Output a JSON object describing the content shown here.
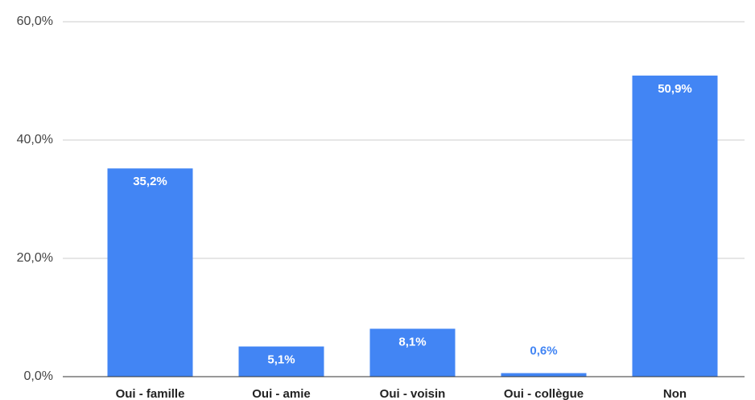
{
  "chart_data": {
    "type": "bar",
    "categories": [
      "Oui - famille",
      "Oui - amie",
      "Oui - voisin",
      "Oui - collègue",
      "Non"
    ],
    "values": [
      35.2,
      5.1,
      8.1,
      0.6,
      50.9
    ],
    "value_labels": [
      "35,2%",
      "5,1%",
      "8,1%",
      "0,6%",
      "50,9%"
    ],
    "color": "#4285f4",
    "ylim": [
      0,
      60
    ],
    "yticks": [
      {
        "value": 0,
        "label": "0,0%"
      },
      {
        "value": 20,
        "label": "20,0%"
      },
      {
        "value": 40,
        "label": "40,0%"
      },
      {
        "value": 60,
        "label": "60,0%"
      }
    ],
    "grid": true
  }
}
